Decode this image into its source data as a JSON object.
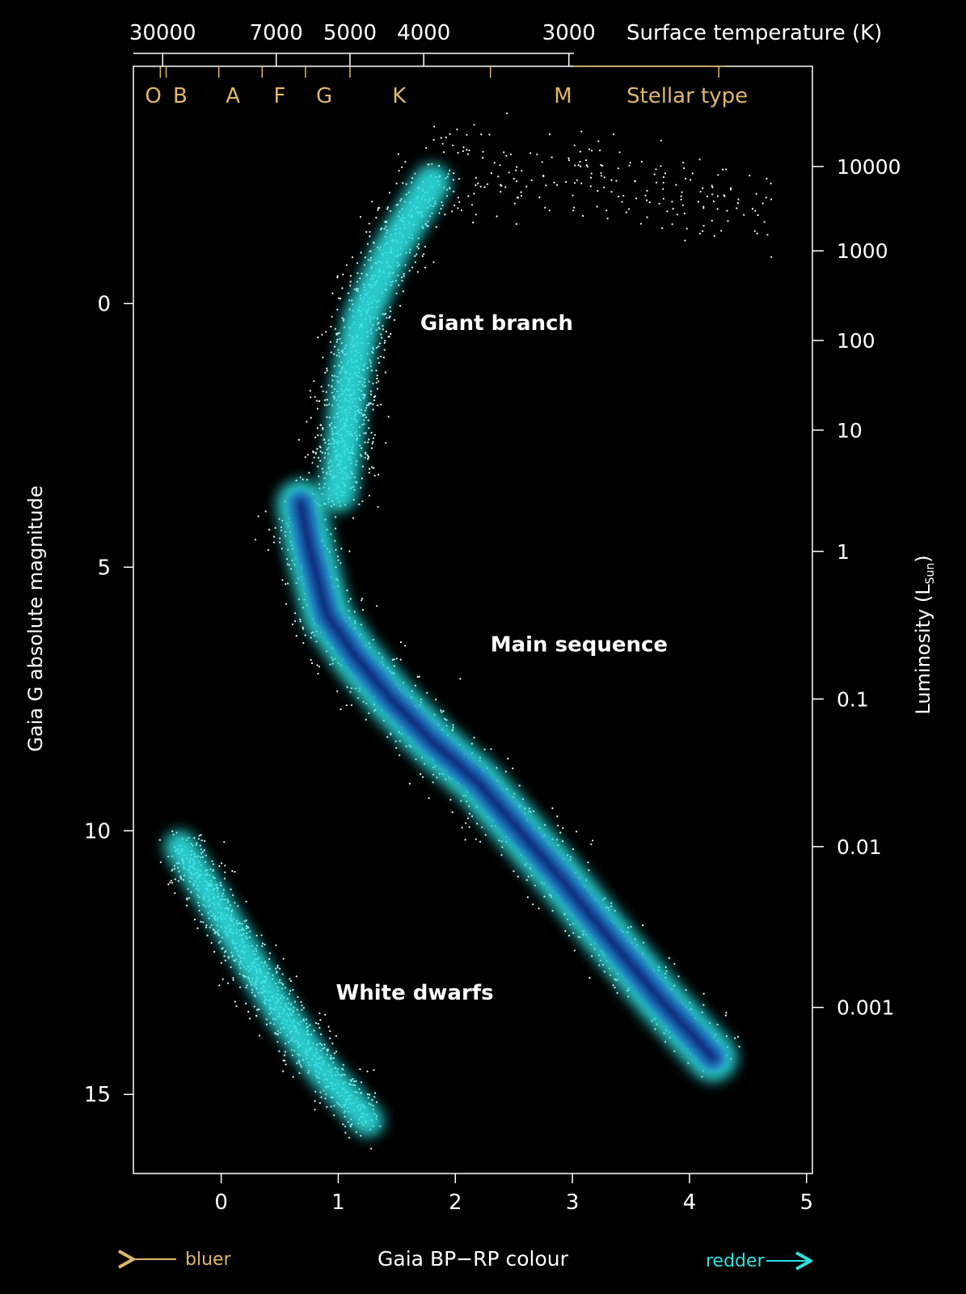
{
  "colors": {
    "background": "#000000",
    "gold": "#e0b86a",
    "cyan": "#2fe0e0",
    "dense": "#0d2a7a",
    "white": "#ffffff"
  },
  "chart_data": {
    "type": "scatter",
    "title": "",
    "xlabel": "Gaia BP−RP colour",
    "ylabel": "Gaia G absolute magnitude",
    "xlim": [
      -0.75,
      5.05
    ],
    "ylim": [
      16.5,
      -4.5
    ],
    "x_ticks": [
      0,
      1,
      2,
      3,
      4,
      5
    ],
    "y_ticks": [
      0,
      5,
      10,
      15
    ],
    "grid": false,
    "top_axis": {
      "label": "Surface temperature (K)",
      "ticks": [
        {
          "label": "30000",
          "x": -0.5
        },
        {
          "label": "7000",
          "x": 0.47
        },
        {
          "label": "5000",
          "x": 1.1
        },
        {
          "label": "4000",
          "x": 1.73
        },
        {
          "label": "3000",
          "x": 2.97
        }
      ]
    },
    "stellar_types": {
      "label": "Stellar type",
      "boundaries": [
        -0.52,
        -0.47,
        -0.02,
        0.35,
        0.72,
        1.1,
        2.3,
        4.25
      ],
      "classes": [
        {
          "label": "O",
          "x": -0.58
        },
        {
          "label": "B",
          "x": -0.35
        },
        {
          "label": "A",
          "x": 0.1
        },
        {
          "label": "F",
          "x": 0.5
        },
        {
          "label": "G",
          "x": 0.88
        },
        {
          "label": "K",
          "x": 1.52
        },
        {
          "label": "M",
          "x": 2.92
        }
      ]
    },
    "right_axis": {
      "label": "Luminosity (L",
      "label_sub": "Sun",
      "label_end": ")",
      "ticks": [
        {
          "label": "10000",
          "mag": -2.6
        },
        {
          "label": "1000",
          "mag": -1.0
        },
        {
          "label": "100",
          "mag": 0.7
        },
        {
          "label": "10",
          "mag": 2.4
        },
        {
          "label": "1",
          "mag": 4.7
        },
        {
          "label": "0.1",
          "mag": 7.5
        },
        {
          "label": "0.01",
          "mag": 10.3
        },
        {
          "label": "0.001",
          "mag": 13.35
        }
      ]
    },
    "series": [
      {
        "name": "Main sequence",
        "ridge": [
          [
            0.68,
            3.8
          ],
          [
            0.75,
            4.6
          ],
          [
            0.9,
            5.9
          ],
          [
            1.15,
            6.7
          ],
          [
            1.45,
            7.5
          ],
          [
            1.8,
            8.3
          ],
          [
            2.2,
            9.1
          ],
          [
            2.55,
            10.0
          ],
          [
            2.9,
            10.9
          ],
          [
            3.3,
            12.0
          ],
          [
            3.75,
            13.2
          ],
          [
            4.2,
            14.3
          ]
        ]
      },
      {
        "name": "Giant branch",
        "ridge": [
          [
            1.0,
            3.6
          ],
          [
            1.05,
            2.6
          ],
          [
            1.1,
            1.5
          ],
          [
            1.2,
            0.3
          ],
          [
            1.45,
            -1.0
          ],
          [
            1.8,
            -2.3
          ]
        ]
      },
      {
        "name": "White dwarfs",
        "ridge": [
          [
            -0.35,
            10.3
          ],
          [
            -0.1,
            11.2
          ],
          [
            0.2,
            12.3
          ],
          [
            0.5,
            13.4
          ],
          [
            0.85,
            14.5
          ],
          [
            1.25,
            15.5
          ]
        ]
      }
    ],
    "annotations": [
      {
        "text": "Giant branch",
        "x": 1.7,
        "y": 0.5
      },
      {
        "text": "Main sequence",
        "x": 2.3,
        "y": 6.6
      },
      {
        "text": "White dwarfs",
        "x": 0.98,
        "y": 13.2
      }
    ],
    "directions": {
      "left": "bluer",
      "right": "redder"
    }
  }
}
